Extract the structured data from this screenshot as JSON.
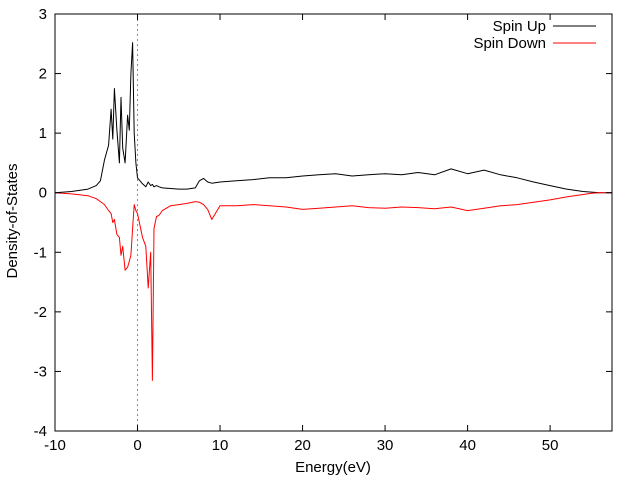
{
  "chart_data": {
    "type": "line",
    "xlabel": "Energy(eV)",
    "ylabel": "Density-of-States",
    "xlim": [
      -10,
      57.5
    ],
    "ylim": [
      -4,
      3
    ],
    "xticks": [
      -10,
      0,
      10,
      20,
      30,
      40,
      50
    ],
    "yticks": [
      -4,
      -3,
      -2,
      -1,
      0,
      1,
      2,
      3
    ],
    "legend_position": "top-right",
    "fermi_line_x": 0,
    "x": [
      -10,
      -8,
      -6,
      -5,
      -4.5,
      -4,
      -3.5,
      -3.2,
      -3,
      -2.8,
      -2.5,
      -2.2,
      -2,
      -1.8,
      -1.5,
      -1.2,
      -1,
      -0.8,
      -0.6,
      -0.4,
      -0.2,
      0,
      0.3,
      0.6,
      1,
      1.3,
      1.6,
      1.8,
      2,
      2.3,
      2.6,
      3,
      4,
      5,
      6,
      7,
      7.5,
      8,
      8.5,
      9,
      10,
      12,
      14,
      16,
      18,
      20,
      22,
      24,
      26,
      28,
      30,
      32,
      34,
      36,
      38,
      40,
      42,
      44,
      46,
      48,
      50,
      52,
      54,
      55,
      56,
      57.5
    ],
    "series": [
      {
        "name": "Spin Up",
        "color": "#000000",
        "values": [
          0,
          0.02,
          0.06,
          0.12,
          0.2,
          0.55,
          0.8,
          1.4,
          0.9,
          1.75,
          1.05,
          0.5,
          1.6,
          0.75,
          0.5,
          1.3,
          1.05,
          2.0,
          2.52,
          1.0,
          0.5,
          0.25,
          0.2,
          0.15,
          0.1,
          0.18,
          0.12,
          0.14,
          0.1,
          0.12,
          0.1,
          0.08,
          0.07,
          0.06,
          0.06,
          0.08,
          0.2,
          0.24,
          0.18,
          0.16,
          0.18,
          0.2,
          0.22,
          0.25,
          0.25,
          0.28,
          0.3,
          0.32,
          0.28,
          0.3,
          0.32,
          0.3,
          0.34,
          0.3,
          0.4,
          0.32,
          0.38,
          0.3,
          0.25,
          0.18,
          0.12,
          0.06,
          0.02,
          0.01,
          0,
          0
        ]
      },
      {
        "name": "Spin Down",
        "color": "#ff0000",
        "values": [
          0,
          -0.02,
          -0.05,
          -0.1,
          -0.15,
          -0.2,
          -0.3,
          -0.35,
          -0.5,
          -0.45,
          -0.7,
          -0.75,
          -1.05,
          -0.9,
          -1.3,
          -1.25,
          -1.15,
          -1.05,
          -0.6,
          -0.2,
          -0.3,
          -0.35,
          -0.55,
          -0.75,
          -0.9,
          -1.6,
          -1.0,
          -3.15,
          -0.6,
          -0.4,
          -0.38,
          -0.3,
          -0.22,
          -0.2,
          -0.18,
          -0.15,
          -0.16,
          -0.2,
          -0.28,
          -0.45,
          -0.22,
          -0.22,
          -0.2,
          -0.22,
          -0.24,
          -0.28,
          -0.26,
          -0.24,
          -0.22,
          -0.25,
          -0.26,
          -0.24,
          -0.25,
          -0.27,
          -0.24,
          -0.3,
          -0.26,
          -0.22,
          -0.2,
          -0.16,
          -0.12,
          -0.07,
          -0.03,
          -0.01,
          0,
          0
        ]
      }
    ]
  }
}
